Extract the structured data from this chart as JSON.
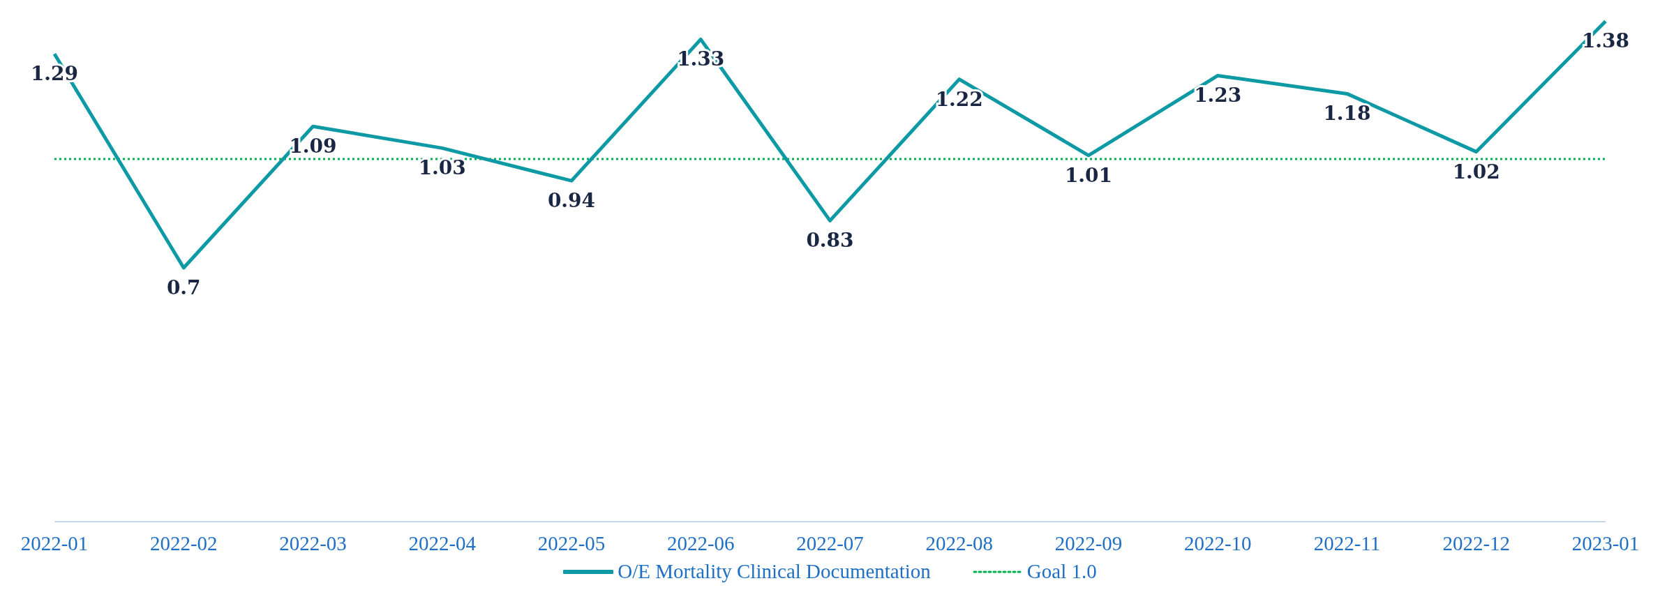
{
  "chart_data": {
    "type": "line",
    "categories": [
      "2022-01",
      "2022-02",
      "2022-03",
      "2022-04",
      "2022-05",
      "2022-06",
      "2022-07",
      "2022-08",
      "2022-09",
      "2022-10",
      "2022-11",
      "2022-12",
      "2023-01"
    ],
    "series": [
      {
        "name": "O/E Mortality Clinical Documentation",
        "color": "#0e9aa5",
        "values": [
          1.29,
          0.7,
          1.09,
          1.03,
          0.94,
          1.33,
          0.83,
          1.22,
          1.01,
          1.23,
          1.18,
          1.02,
          1.38
        ]
      }
    ],
    "tick_labels": "x",
    "data_labels": true,
    "grid": false,
    "legend": "bottom",
    "line_style": "solid",
    "marker": "none",
    "ref_lines": [
      {
        "axis": "y",
        "value": 1.0,
        "label": "Goal 1.0",
        "color": "#00b050",
        "line_style": "dotted"
      }
    ]
  }
}
